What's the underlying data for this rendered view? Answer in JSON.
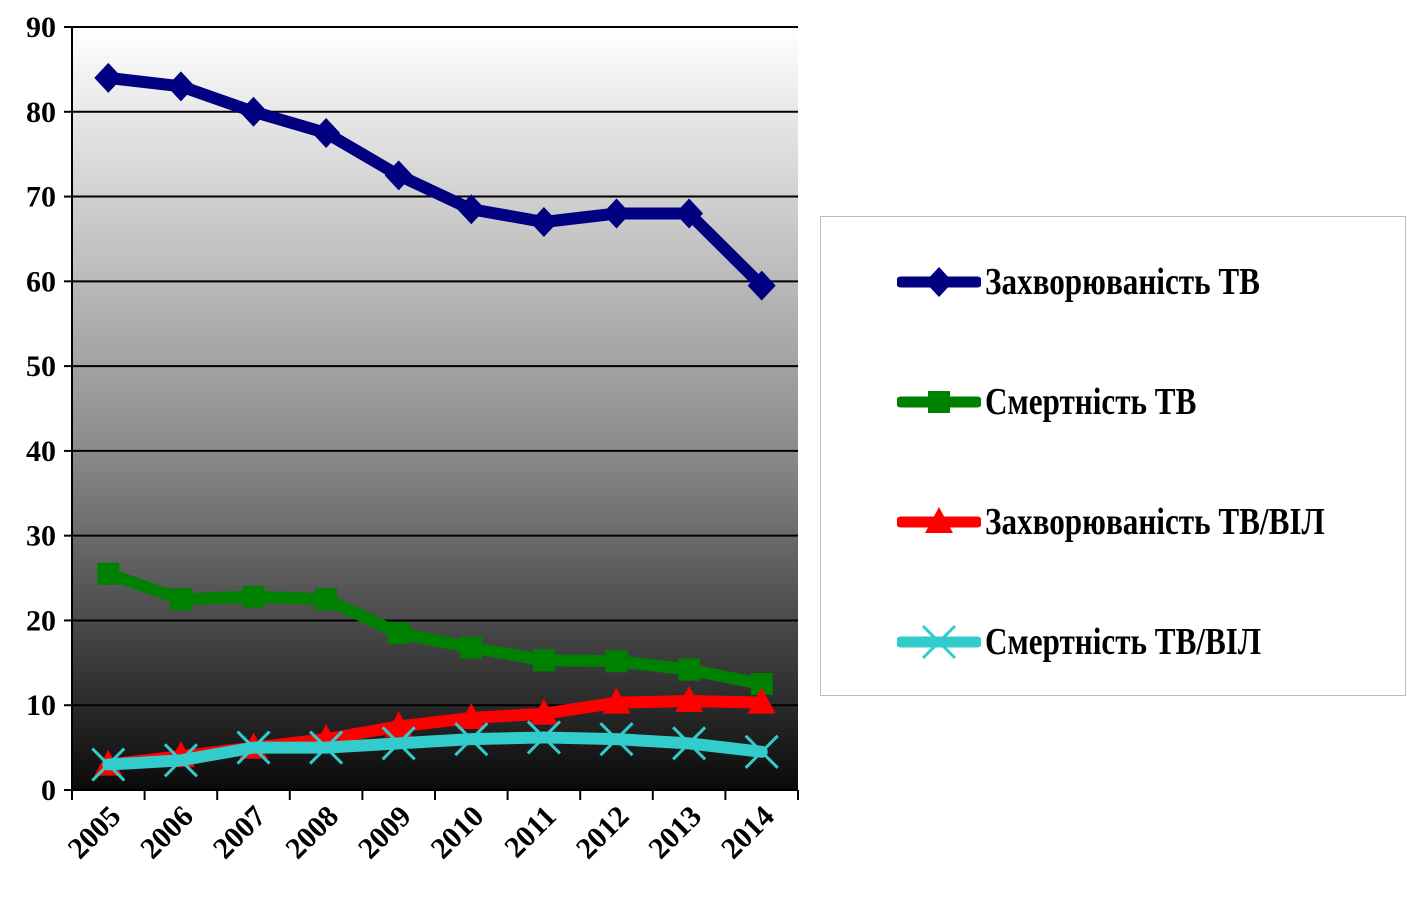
{
  "chart_data": {
    "type": "line",
    "title": "",
    "xlabel": "",
    "ylabel": "",
    "x": [
      "2005",
      "2006",
      "2007",
      "2008",
      "2009",
      "2010",
      "2011",
      "2012",
      "2013",
      "2014"
    ],
    "ylim": [
      0,
      90
    ],
    "yticks": [
      0,
      10,
      20,
      30,
      40,
      50,
      60,
      70,
      80,
      90
    ],
    "grid": true,
    "legend_position": "right",
    "series": [
      {
        "name": "Захворюваність  ТВ",
        "color": "#000080",
        "marker": "diamond",
        "values": [
          84,
          83,
          80,
          77.5,
          72.5,
          68.5,
          67,
          68,
          68,
          59.5
        ]
      },
      {
        "name": "Смертність ТВ",
        "color": "#008000",
        "marker": "square",
        "values": [
          25.5,
          22.5,
          22.8,
          22.5,
          18.5,
          16.8,
          15.3,
          15.2,
          14.2,
          12.5
        ]
      },
      {
        "name": "Захворюваність  ТВ/ВІЛ",
        "color": "#ff0000",
        "marker": "triangle",
        "values": [
          3,
          4,
          5,
          6,
          7.5,
          8.5,
          9,
          10.3,
          10.5,
          10.3
        ]
      },
      {
        "name": "Смертність ТВ/ВІЛ",
        "color": "#33cccc",
        "marker": "x",
        "values": [
          3,
          3.5,
          5,
          5,
          5.5,
          6,
          6.2,
          6,
          5.5,
          4.5
        ]
      }
    ]
  }
}
